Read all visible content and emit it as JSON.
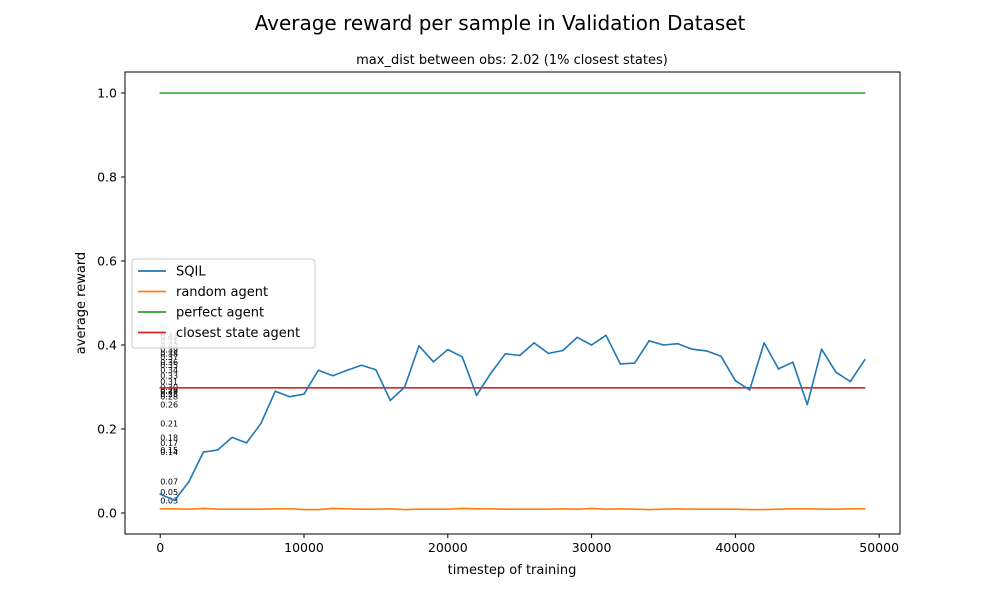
{
  "chart_data": {
    "type": "line",
    "title": "Average reward per sample in Validation Dataset",
    "subtitle": "max_dist between obs: 2.02 (1% closest states)",
    "xlabel": "timestep of training",
    "ylabel": "average reward",
    "xlim": [
      -2450,
      51450
    ],
    "ylim": [
      -0.05,
      1.05
    ],
    "xticks": [
      0,
      10000,
      20000,
      30000,
      40000,
      50000
    ],
    "yticks": [
      0.0,
      0.2,
      0.4,
      0.6,
      0.8,
      1.0
    ],
    "xtick_labels": [
      "0",
      "10000",
      "20000",
      "30000",
      "40000",
      "50000"
    ],
    "ytick_labels": [
      "0.0",
      "0.2",
      "0.4",
      "0.6",
      "0.8",
      "1.0"
    ],
    "legend_position": "center-left",
    "grid": false,
    "series": [
      {
        "name": "SQIL",
        "color": "#1f77b4",
        "x": [
          0,
          1000,
          2000,
          3000,
          4000,
          5000,
          6000,
          7000,
          8000,
          9000,
          10000,
          11000,
          12000,
          13000,
          14000,
          15000,
          16000,
          17000,
          18000,
          19000,
          20000,
          21000,
          22000,
          23000,
          24000,
          25000,
          26000,
          27000,
          28000,
          29000,
          30000,
          31000,
          32000,
          33000,
          34000,
          35000,
          36000,
          37000,
          38000,
          39000,
          40000,
          41000,
          42000,
          43000,
          44000,
          45000,
          46000,
          47000,
          48000,
          49000
        ],
        "y": [
          0.045,
          0.03,
          0.075,
          0.145,
          0.15,
          0.18,
          0.167,
          0.213,
          0.29,
          0.277,
          0.283,
          0.34,
          0.327,
          0.34,
          0.352,
          0.341,
          0.268,
          0.3,
          0.398,
          0.36,
          0.389,
          0.372,
          0.28,
          0.333,
          0.379,
          0.375,
          0.405,
          0.38,
          0.387,
          0.418,
          0.4,
          0.423,
          0.355,
          0.357,
          0.41,
          0.4,
          0.403,
          0.39,
          0.386,
          0.373,
          0.315,
          0.293,
          0.405,
          0.343,
          0.359,
          0.258,
          0.39,
          0.335,
          0.313,
          0.365
        ]
      },
      {
        "name": "random agent",
        "color": "#ff7f0e",
        "x": [
          0,
          1000,
          2000,
          3000,
          4000,
          5000,
          6000,
          7000,
          8000,
          9000,
          10000,
          11000,
          12000,
          13000,
          14000,
          15000,
          16000,
          17000,
          18000,
          19000,
          20000,
          21000,
          22000,
          23000,
          24000,
          25000,
          26000,
          27000,
          28000,
          29000,
          30000,
          31000,
          32000,
          33000,
          34000,
          35000,
          36000,
          37000,
          38000,
          39000,
          40000,
          41000,
          42000,
          43000,
          44000,
          45000,
          46000,
          47000,
          48000,
          49000
        ],
        "y": [
          0.01,
          0.01,
          0.009,
          0.011,
          0.009,
          0.009,
          0.009,
          0.009,
          0.01,
          0.01,
          0.008,
          0.008,
          0.011,
          0.01,
          0.009,
          0.009,
          0.01,
          0.008,
          0.009,
          0.009,
          0.009,
          0.011,
          0.01,
          0.01,
          0.009,
          0.009,
          0.009,
          0.009,
          0.01,
          0.009,
          0.011,
          0.009,
          0.01,
          0.009,
          0.008,
          0.009,
          0.01,
          0.009,
          0.009,
          0.009,
          0.009,
          0.008,
          0.008,
          0.009,
          0.01,
          0.01,
          0.009,
          0.009,
          0.01,
          0.01
        ]
      },
      {
        "name": "perfect agent",
        "color": "#2ca02c",
        "x": [
          0,
          49000
        ],
        "y": [
          1.0,
          1.0
        ]
      },
      {
        "name": "closest state agent",
        "color": "#d62728",
        "x": [
          0,
          49000
        ],
        "y": [
          0.298,
          0.298
        ]
      }
    ],
    "annotations": [
      {
        "text": "0.03",
        "x": 0,
        "y": 0.03
      },
      {
        "text": "0.05",
        "x": 0,
        "y": 0.05
      },
      {
        "text": "0.07",
        "x": 0,
        "y": 0.075
      },
      {
        "text": "0.14",
        "x": 0,
        "y": 0.145
      },
      {
        "text": "0.15",
        "x": 0,
        "y": 0.15
      },
      {
        "text": "0.17",
        "x": 0,
        "y": 0.167
      },
      {
        "text": "0.18",
        "x": 0,
        "y": 0.18
      },
      {
        "text": "0.21",
        "x": 0,
        "y": 0.213
      },
      {
        "text": "0.26",
        "x": 0,
        "y": 0.258
      },
      {
        "text": "0.28",
        "x": 0,
        "y": 0.277
      },
      {
        "text": "0.28",
        "x": 0,
        "y": 0.283
      },
      {
        "text": "0.29",
        "x": 0,
        "y": 0.29
      },
      {
        "text": "0.29",
        "x": 0,
        "y": 0.293
      },
      {
        "text": "0.30",
        "x": 0,
        "y": 0.3
      },
      {
        "text": "0.31",
        "x": 0,
        "y": 0.313
      },
      {
        "text": "0.33",
        "x": 0,
        "y": 0.327
      },
      {
        "text": "0.34",
        "x": 0,
        "y": 0.34
      },
      {
        "text": "0.35",
        "x": 0,
        "y": 0.352
      },
      {
        "text": "0.36",
        "x": 0,
        "y": 0.36
      },
      {
        "text": "0.37",
        "x": 0,
        "y": 0.372
      },
      {
        "text": "0.38",
        "x": 0,
        "y": 0.38
      },
      {
        "text": "0.39",
        "x": 0,
        "y": 0.389
      },
      {
        "text": "0.40",
        "x": 0,
        "y": 0.4
      },
      {
        "text": "0.41",
        "x": 0,
        "y": 0.41
      },
      {
        "text": "0.42",
        "x": 0,
        "y": 0.418
      },
      {
        "text": "0.42",
        "x": 0,
        "y": 0.423
      }
    ]
  }
}
